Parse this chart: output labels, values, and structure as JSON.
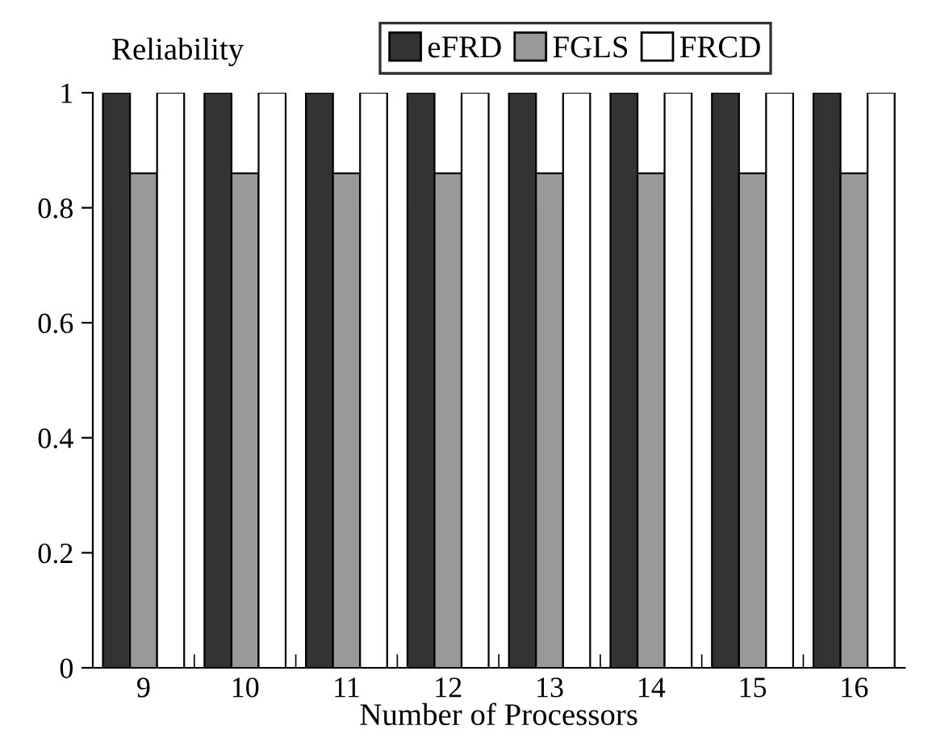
{
  "chart_data": {
    "type": "bar",
    "ylabel": "Reliability",
    "xlabel": "Number of Processors",
    "categories": [
      "9",
      "10",
      "11",
      "12",
      "13",
      "14",
      "15",
      "16"
    ],
    "series": [
      {
        "name": "eFRD",
        "color": "#333333",
        "values": [
          1,
          1,
          1,
          1,
          1,
          1,
          1,
          1
        ]
      },
      {
        "name": "FGLS",
        "color": "#999999",
        "values": [
          0.86,
          0.86,
          0.86,
          0.86,
          0.86,
          0.86,
          0.86,
          0.86
        ]
      },
      {
        "name": "FRCD",
        "color": "#ffffff",
        "values": [
          1,
          1,
          1,
          1,
          1,
          1,
          1,
          1
        ]
      }
    ],
    "ylim": [
      0,
      1
    ],
    "yticks": [
      0,
      0.2,
      0.4,
      0.6,
      0.8,
      1
    ],
    "grid": false,
    "legend": "top right"
  }
}
